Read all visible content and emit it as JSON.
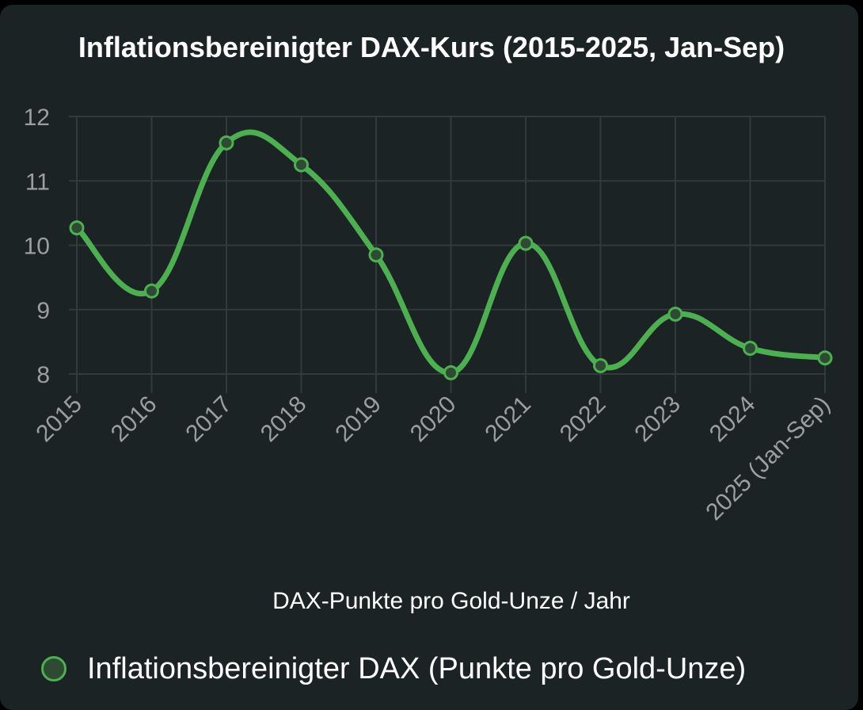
{
  "chart_data": {
    "type": "line",
    "title": "Inflationsbereinigter DAX-Kurs (2015-2025, Jan-Sep)",
    "xlabel": "DAX-Punkte pro Gold-Unze / Jahr",
    "ylabel": "",
    "categories": [
      "2015",
      "2016",
      "2017",
      "2018",
      "2019",
      "2020",
      "2021",
      "2022",
      "2023",
      "2024",
      "2025 (Jan-Sep)"
    ],
    "ylim": [
      7.85,
      12
    ],
    "yticks": [
      8,
      9,
      10,
      11,
      12
    ],
    "grid": true,
    "legend_position": "bottom",
    "series": [
      {
        "name": "Inflationsbereinigter DAX (Punkte pro Gold-Unze)",
        "values": [
          10.27,
          9.29,
          11.59,
          11.25,
          9.85,
          8.02,
          10.03,
          8.13,
          8.93,
          8.4,
          8.25
        ],
        "color": "#4caf50"
      }
    ]
  }
}
